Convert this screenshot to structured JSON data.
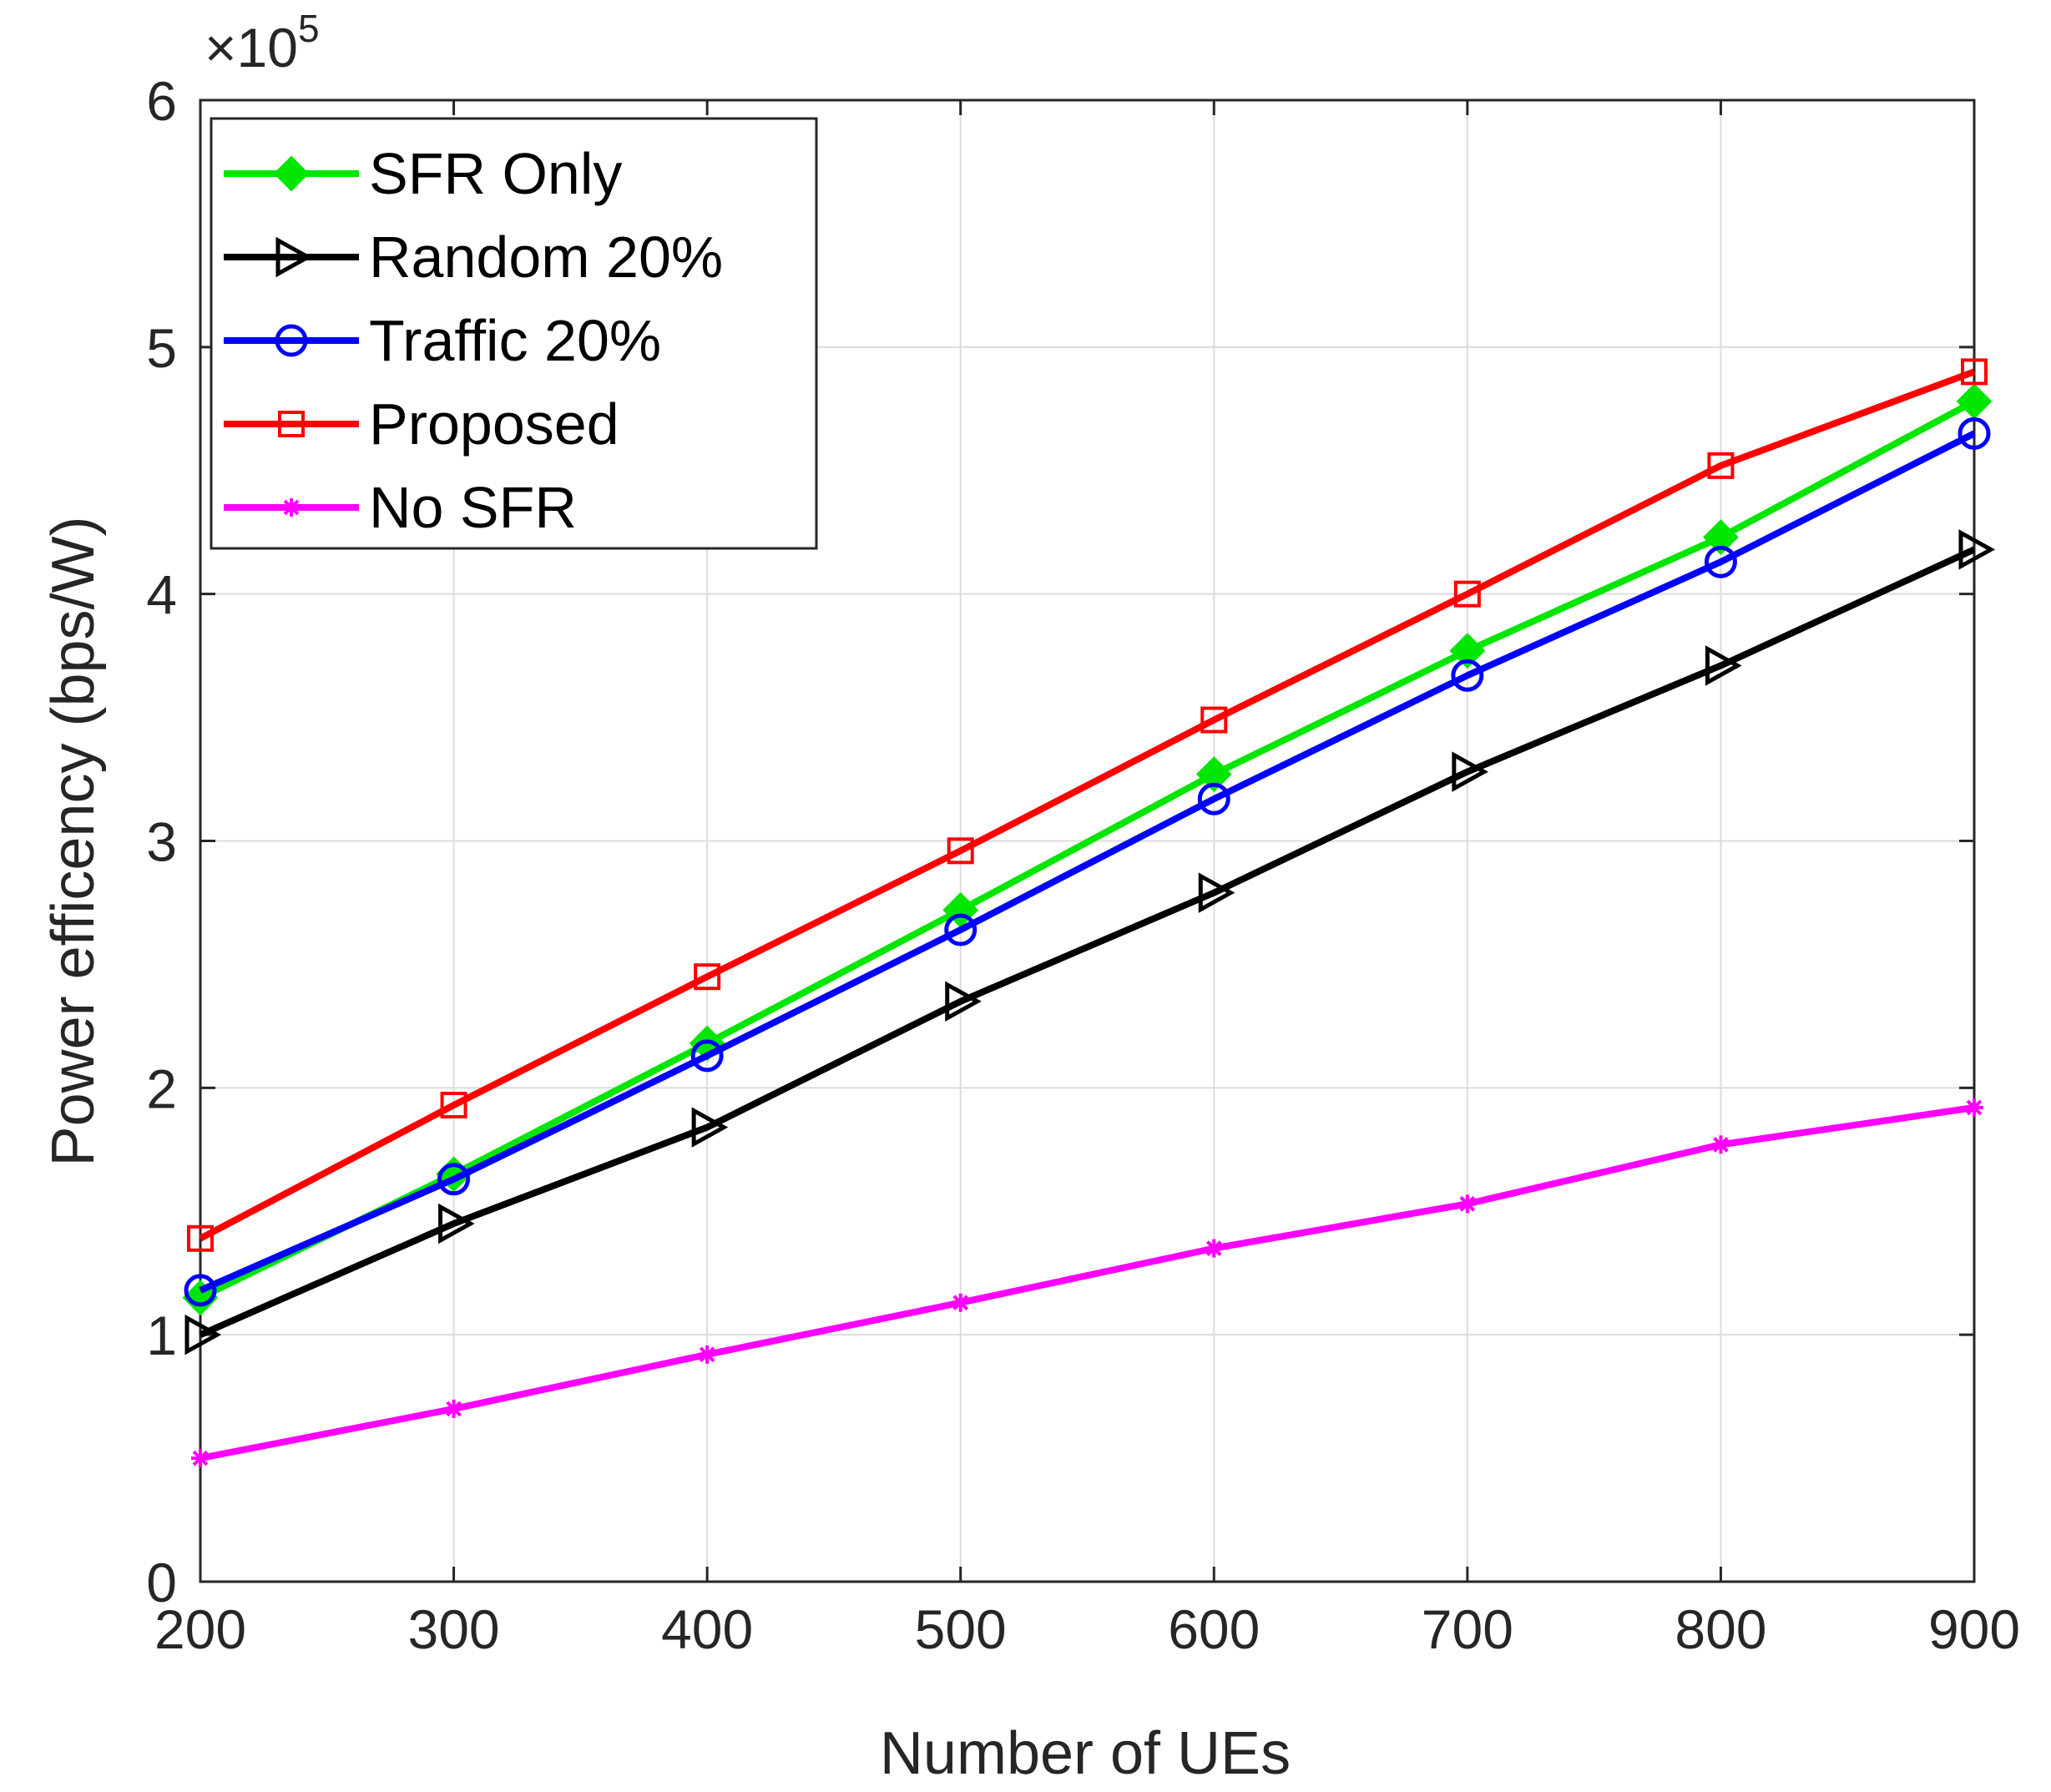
{
  "chart_data": {
    "type": "line",
    "title": "",
    "xlabel": "Number of UEs",
    "ylabel": "Power efficency (bps/W)",
    "x": [
      200,
      300,
      400,
      500,
      600,
      700,
      800,
      900
    ],
    "xlim": [
      200,
      900
    ],
    "ylim": [
      0,
      6
    ],
    "x_ticks": [
      "200",
      "300",
      "400",
      "500",
      "600",
      "700",
      "800",
      "900"
    ],
    "y_ticks": [
      "0",
      "1",
      "2",
      "3",
      "4",
      "5",
      "6"
    ],
    "y_exponent_base": "10",
    "y_exponent_power": "5",
    "grid": true,
    "legend_position": "top-left",
    "series": [
      {
        "name": "SFR Only",
        "color": "#00e600",
        "marker": "diamond",
        "values": [
          1.15,
          1.65,
          2.18,
          2.72,
          3.27,
          3.77,
          4.23,
          4.78
        ]
      },
      {
        "name": "Random 20%",
        "color": "#000000",
        "marker": "triangle-right",
        "values": [
          1.0,
          1.45,
          1.84,
          2.35,
          2.79,
          3.28,
          3.71,
          4.18
        ]
      },
      {
        "name": "Traffic 20%",
        "color": "#0000ff",
        "marker": "circle",
        "values": [
          1.18,
          1.63,
          2.13,
          2.64,
          3.17,
          3.67,
          4.13,
          4.65
        ]
      },
      {
        "name": "Proposed",
        "color": "#ff0000",
        "marker": "square",
        "values": [
          1.39,
          1.93,
          2.45,
          2.96,
          3.49,
          4.0,
          4.52,
          4.9
        ]
      },
      {
        "name": "No SFR",
        "color": "#ff00ff",
        "marker": "asterisk",
        "values": [
          0.5,
          0.7,
          0.92,
          1.13,
          1.35,
          1.53,
          1.77,
          1.92
        ]
      }
    ]
  }
}
